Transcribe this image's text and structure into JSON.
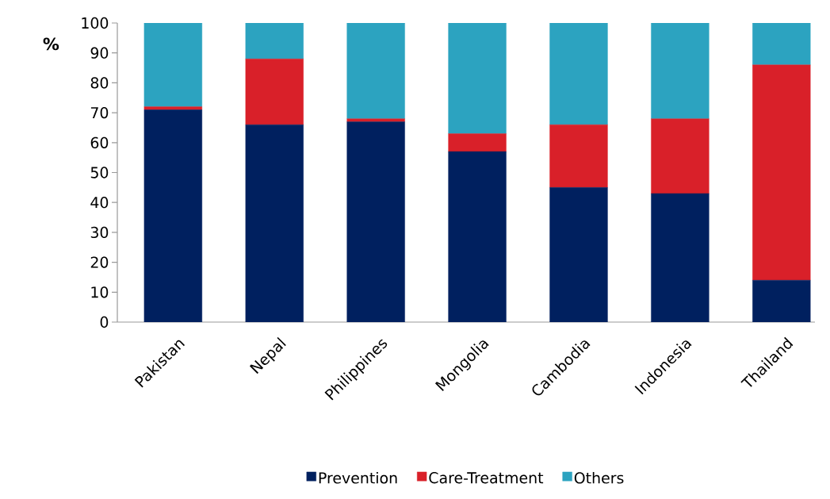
{
  "chart_data": {
    "type": "bar",
    "stacked": true,
    "ylabel": "%",
    "categories": [
      "Pakistan",
      "Nepal",
      "Philippines",
      "Mongolia",
      "Cambodia",
      "Indonesia",
      "Thailand"
    ],
    "series": [
      {
        "name": "Prevention",
        "color": "#00205f",
        "values": [
          71,
          66,
          67,
          57,
          45,
          43,
          14
        ]
      },
      {
        "name": "Care-Treatment",
        "color": "#d92029",
        "values": [
          1,
          22,
          1,
          6,
          21,
          25,
          72
        ]
      },
      {
        "name": "Others",
        "color": "#2ca3c0",
        "values": [
          28,
          12,
          32,
          37,
          34,
          32,
          14
        ]
      }
    ],
    "ylim": [
      0,
      100
    ],
    "yticks": [
      0,
      10,
      20,
      30,
      40,
      50,
      60,
      70,
      80,
      90,
      100
    ],
    "grid": false,
    "legend": "bottom"
  }
}
